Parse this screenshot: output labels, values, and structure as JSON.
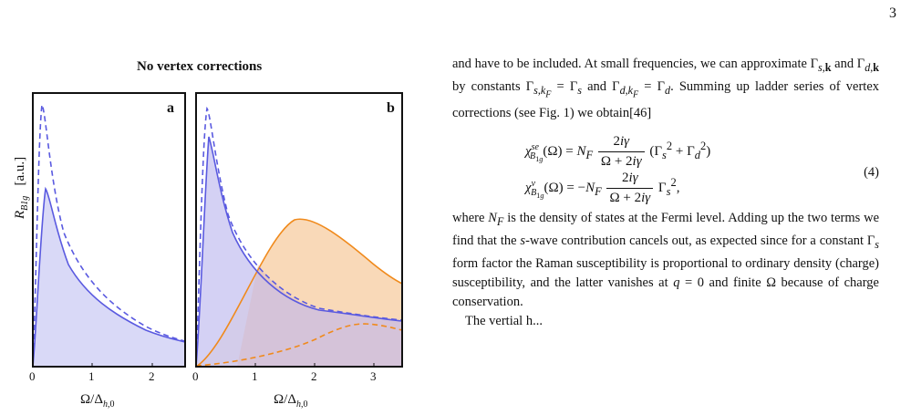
{
  "page_number": "3",
  "figure": {
    "title": "No vertex corrections",
    "y_axis_label": "R_B1g  [a.u.]",
    "panels": [
      {
        "label": "a",
        "x_label": "Ω/Δ_h,0",
        "x_ticks": [
          "0",
          "1",
          "2"
        ],
        "colors": {
          "blue": "#5a5ae0",
          "fill": "#d9d9f7"
        }
      },
      {
        "label": "b",
        "x_label": "Ω/Δ_h,0",
        "x_ticks": [
          "0",
          "1",
          "2",
          "3"
        ],
        "colors": {
          "blue": "#5a5ae0",
          "orange": "#f08a1c",
          "fill_blue": "#d9d9f7",
          "fill_orange": "#f9d9b8"
        }
      }
    ]
  },
  "text": {
    "para1": "and have to be included. At small frequencies, we can approximate Γs,k and Γd,k by constants Γs,kF = Γs and Γd,kF = Γd. Summing up ladder series of vertex corrections (see Fig. 1) we obtain[46]",
    "eq_number": "(4)",
    "para2": "where NF is the density of states at the Fermi level. Adding up the two terms we find that the s-wave contribution cancels out, as expected since for a constant Γs form factor the Raman susceptibility is proportional to ordinary density (charge) susceptibility, and the latter vanishes at q = 0 and finite Ω because of charge conservation.",
    "para3": "The vertial h..."
  }
}
